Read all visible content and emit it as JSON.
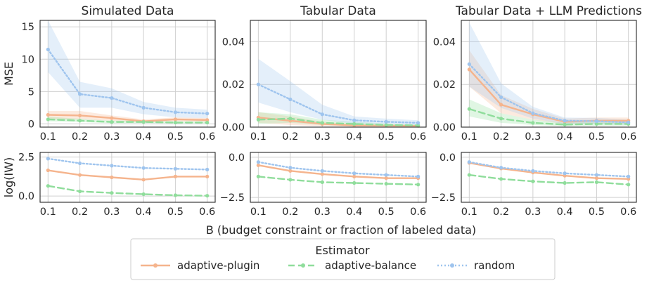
{
  "figure": {
    "shared_xlabel": "B (budget constraint or fraction of labeled data)",
    "legend": {
      "title": "Estimator",
      "items": [
        {
          "key": "adaptive-plugin",
          "label": "adaptive-plugin"
        },
        {
          "key": "adaptive-balance",
          "label": "adaptive-balance"
        },
        {
          "key": "random",
          "label": "random"
        }
      ]
    }
  },
  "style": {
    "colors": {
      "adaptive-plugin": "#f5b48d",
      "adaptive-balance": "#8fdd9b",
      "random": "#9ec4ee",
      "grid": "#d0d0d0",
      "axis": "#262626"
    },
    "dashes": {
      "adaptive-plugin": "",
      "adaptive-balance": "9,5",
      "random": "2,3"
    }
  },
  "chart_data": [
    {
      "type": "line",
      "title": "Simulated Data",
      "ylabel": "MSE",
      "x": [
        0.1,
        0.2,
        0.3,
        0.4,
        0.5,
        0.6
      ],
      "ylim": [
        -0.5,
        16
      ],
      "yticks": [
        0,
        5,
        10,
        15
      ],
      "ytick_labels": [
        "0",
        "5",
        "10",
        "15"
      ],
      "series": [
        {
          "name": "adaptive-plugin",
          "values": [
            1.4,
            1.3,
            0.9,
            0.4,
            0.7,
            0.6
          ],
          "band": [
            [
              0.7,
              2.0
            ],
            [
              0.7,
              2.0
            ],
            [
              0.5,
              1.3
            ],
            [
              0.2,
              0.7
            ],
            [
              0.4,
              1.0
            ],
            [
              0.3,
              0.9
            ]
          ]
        },
        {
          "name": "adaptive-balance",
          "values": [
            0.7,
            0.5,
            0.3,
            0.3,
            0.2,
            0.2
          ],
          "band": [
            [
              0.4,
              1.1
            ],
            [
              0.3,
              0.8
            ],
            [
              0.1,
              0.5
            ],
            [
              0.1,
              0.5
            ],
            [
              0.1,
              0.4
            ],
            [
              0.1,
              0.4
            ]
          ]
        },
        {
          "name": "random",
          "values": [
            11.5,
            4.6,
            4.0,
            2.5,
            1.8,
            1.6
          ],
          "band": [
            [
              8.0,
              16.0
            ],
            [
              2.5,
              6.5
            ],
            [
              2.5,
              5.5
            ],
            [
              1.5,
              3.4
            ],
            [
              1.0,
              2.5
            ],
            [
              0.9,
              2.2
            ]
          ]
        }
      ]
    },
    {
      "type": "line",
      "title": "Tabular Data",
      "ylabel": "",
      "x": [
        0.1,
        0.2,
        0.3,
        0.4,
        0.5,
        0.6
      ],
      "ylim": [
        0,
        0.05
      ],
      "yticks": [
        0.0,
        0.02,
        0.04
      ],
      "ytick_labels": [
        "0.00",
        "0.02",
        "0.04"
      ],
      "series": [
        {
          "name": "adaptive-plugin",
          "values": [
            0.0045,
            0.003,
            0.0015,
            0.0008,
            0.0007,
            0.0006
          ],
          "band": [
            [
              0.002,
              0.007
            ],
            [
              0.001,
              0.005
            ],
            [
              0.0005,
              0.0025
            ],
            [
              0.0002,
              0.0014
            ],
            [
              0.0002,
              0.0012
            ],
            [
              0.0002,
              0.001
            ]
          ]
        },
        {
          "name": "adaptive-balance",
          "values": [
            0.0035,
            0.004,
            0.002,
            0.0015,
            0.001,
            0.0008
          ],
          "band": [
            [
              0.0015,
              0.007
            ],
            [
              0.002,
              0.006
            ],
            [
              0.001,
              0.0035
            ],
            [
              0.0007,
              0.0025
            ],
            [
              0.0004,
              0.0017
            ],
            [
              0.0003,
              0.0014
            ]
          ]
        },
        {
          "name": "random",
          "values": [
            0.02,
            0.013,
            0.006,
            0.0032,
            0.0025,
            0.002
          ],
          "band": [
            [
              0.0115,
              0.032
            ],
            [
              0.007,
              0.0215
            ],
            [
              0.0035,
              0.0105
            ],
            [
              0.0016,
              0.005
            ],
            [
              0.0013,
              0.004
            ],
            [
              0.001,
              0.0032
            ]
          ]
        }
      ]
    },
    {
      "type": "line",
      "title": "Tabular Data + LLM Predictions",
      "ylabel": "",
      "x": [
        0.1,
        0.2,
        0.3,
        0.4,
        0.5,
        0.6
      ],
      "ylim": [
        0,
        0.05
      ],
      "yticks": [
        0.0,
        0.02,
        0.04
      ],
      "ytick_labels": [
        "0.00",
        "0.02",
        "0.04"
      ],
      "series": [
        {
          "name": "adaptive-plugin",
          "values": [
            0.027,
            0.0105,
            0.006,
            0.0025,
            0.003,
            0.003
          ],
          "band": [
            [
              0.019,
              0.036
            ],
            [
              0.0065,
              0.015
            ],
            [
              0.0035,
              0.0085
            ],
            [
              0.0015,
              0.004
            ],
            [
              0.0015,
              0.0045
            ],
            [
              0.0015,
              0.0045
            ]
          ]
        },
        {
          "name": "adaptive-balance",
          "values": [
            0.0085,
            0.004,
            0.002,
            0.0012,
            0.0015,
            0.0015
          ],
          "band": [
            [
              0.005,
              0.013
            ],
            [
              0.002,
              0.0065
            ],
            [
              0.001,
              0.0035
            ],
            [
              0.0005,
              0.002
            ],
            [
              0.0007,
              0.0025
            ],
            [
              0.0007,
              0.0025
            ]
          ]
        },
        {
          "name": "random",
          "values": [
            0.0295,
            0.014,
            0.0065,
            0.003,
            0.0028,
            0.0022
          ],
          "band": [
            [
              0.019,
              0.049
            ],
            [
              0.009,
              0.0205
            ],
            [
              0.004,
              0.0095
            ],
            [
              0.0015,
              0.0045
            ],
            [
              0.0014,
              0.0043
            ],
            [
              0.001,
              0.0035
            ]
          ]
        }
      ]
    },
    {
      "type": "line",
      "title": "",
      "ylabel": "log(IW)",
      "x": [
        0.1,
        0.2,
        0.3,
        0.4,
        0.5,
        0.6
      ],
      "xtick_labels": [
        "0.1",
        "0.2",
        "0.3",
        "0.4",
        "0.5",
        "0.6"
      ],
      "ylim": [
        -0.4,
        2.8
      ],
      "yticks": [
        0.0,
        2.5
      ],
      "ytick_labels": [
        "0.0",
        "2.5"
      ],
      "series": [
        {
          "name": "adaptive-plugin",
          "values": [
            1.65,
            1.35,
            1.2,
            1.05,
            1.25,
            1.25
          ]
        },
        {
          "name": "adaptive-balance",
          "values": [
            0.65,
            0.3,
            0.2,
            0.12,
            0.05,
            0.02
          ]
        },
        {
          "name": "random",
          "values": [
            2.4,
            2.1,
            1.95,
            1.8,
            1.75,
            1.7
          ]
        }
      ]
    },
    {
      "type": "line",
      "title": "",
      "ylabel": "",
      "x": [
        0.1,
        0.2,
        0.3,
        0.4,
        0.5,
        0.6
      ],
      "xtick_labels": [
        "0.1",
        "0.2",
        "0.3",
        "0.4",
        "0.5",
        "0.6"
      ],
      "ylim": [
        -2.8,
        0.3
      ],
      "yticks": [
        0.0,
        -2.5
      ],
      "ytick_labels": [
        "0.0",
        "−2.5"
      ],
      "series": [
        {
          "name": "adaptive-plugin",
          "values": [
            -0.5,
            -0.85,
            -1.05,
            -1.2,
            -1.3,
            -1.3
          ]
        },
        {
          "name": "adaptive-balance",
          "values": [
            -1.2,
            -1.4,
            -1.55,
            -1.6,
            -1.65,
            -1.7
          ]
        },
        {
          "name": "random",
          "values": [
            -0.3,
            -0.65,
            -0.85,
            -1.0,
            -1.1,
            -1.2
          ]
        }
      ]
    },
    {
      "type": "line",
      "title": "",
      "ylabel": "",
      "x": [
        0.1,
        0.2,
        0.3,
        0.4,
        0.5,
        0.6
      ],
      "xtick_labels": [
        "0.1",
        "0.2",
        "0.3",
        "0.4",
        "0.5",
        "0.6"
      ],
      "ylim": [
        -2.8,
        0.3
      ],
      "yticks": [
        0.0,
        -2.5
      ],
      "ytick_labels": [
        "0.0",
        "−2.5"
      ],
      "series": [
        {
          "name": "adaptive-plugin",
          "values": [
            -0.35,
            -0.7,
            -0.95,
            -1.15,
            -1.3,
            -1.35
          ]
        },
        {
          "name": "adaptive-balance",
          "values": [
            -1.1,
            -1.35,
            -1.5,
            -1.6,
            -1.55,
            -1.7
          ]
        },
        {
          "name": "random",
          "values": [
            -0.3,
            -0.65,
            -0.85,
            -1.0,
            -1.1,
            -1.2
          ]
        }
      ]
    }
  ]
}
